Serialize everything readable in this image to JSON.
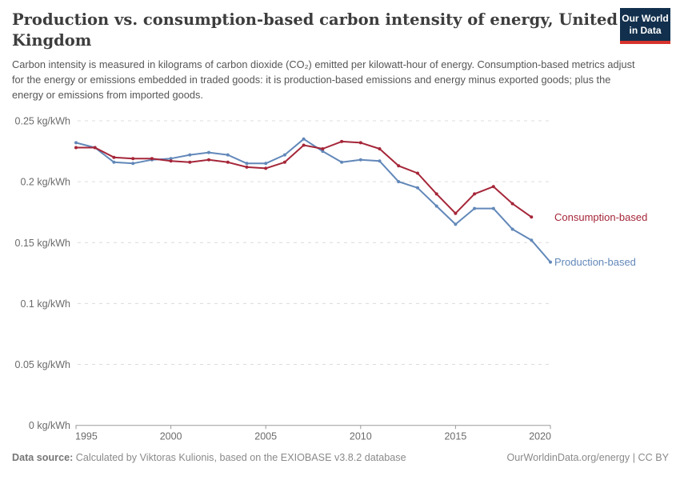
{
  "header": {
    "title_lines": [
      "Production vs. consumption-based carbon intensity of energy, United",
      "Kingdom"
    ],
    "subtitle": "Carbon intensity is measured in kilograms of carbon dioxide (CO₂) emitted per kilowatt-hour of energy. Consumption-based metrics adjust for the energy or emissions embedded in traded goods: it is production-based emissions and energy minus exported goods; plus the energy or emissions from imported goods."
  },
  "logo": {
    "line1": "Our World",
    "line2": "in Data",
    "background": "#12304d",
    "stripe": "#d7332c"
  },
  "chart_data": {
    "type": "line",
    "title": "Production vs. consumption-based carbon intensity of energy, United Kingdom",
    "xlabel": "",
    "ylabel": "kg/kWh",
    "x": [
      1995,
      1996,
      1997,
      1998,
      1999,
      2000,
      2001,
      2002,
      2003,
      2004,
      2005,
      2006,
      2007,
      2008,
      2009,
      2010,
      2011,
      2012,
      2013,
      2014,
      2015,
      2016,
      2017,
      2018,
      2019,
      2020
    ],
    "x_ticks": [
      1995,
      2000,
      2005,
      2010,
      2015,
      2020
    ],
    "y_ticks": [
      0,
      0.05,
      0.1,
      0.15,
      0.2,
      0.25
    ],
    "y_unit": " kg/kWh",
    "ylim": [
      0,
      0.25
    ],
    "grid": "dashed-horizontal",
    "legend_position": "right-end-labels",
    "series": [
      {
        "name": "Production-based",
        "color": "#6288b9",
        "values": [
          0.232,
          0.228,
          0.216,
          0.215,
          0.218,
          0.219,
          0.222,
          0.224,
          0.222,
          0.215,
          0.215,
          0.222,
          0.235,
          0.225,
          0.216,
          0.218,
          0.217,
          0.2,
          0.195,
          0.18,
          0.165,
          0.178,
          0.178,
          0.161,
          0.152,
          0.134
        ]
      },
      {
        "name": "Consumption-based",
        "color": "#a52639",
        "values": [
          0.228,
          0.228,
          0.22,
          0.219,
          0.219,
          0.217,
          0.216,
          0.218,
          0.216,
          0.212,
          0.211,
          0.216,
          0.23,
          0.227,
          0.233,
          0.232,
          0.227,
          0.213,
          0.207,
          0.19,
          0.174,
          0.19,
          0.196,
          0.182,
          0.171
        ]
      }
    ]
  },
  "footer": {
    "datasource_label": "Data source:",
    "datasource_text": "Calculated by Viktoras Kulionis, based on the EXIOBASE v3.8.2 database",
    "credit": "OurWorldinData.org/energy | CC BY"
  }
}
